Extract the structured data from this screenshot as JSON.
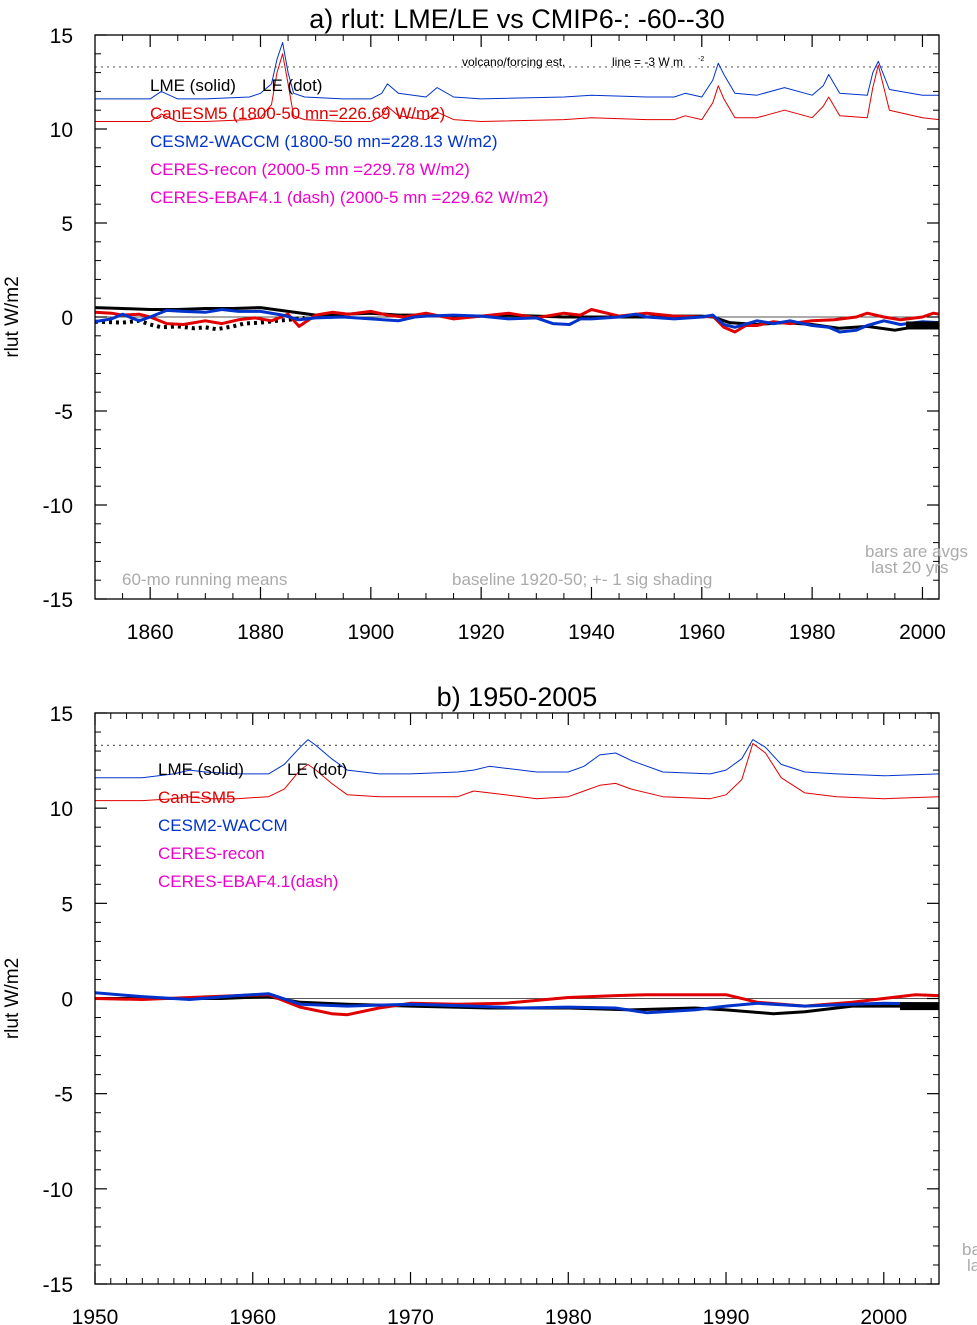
{
  "chart_data": [
    {
      "type": "line",
      "title": "a) rlut: LME/LE vs CMIP6-: -60--30",
      "ylabel": "rlut W/m2",
      "xlim": [
        1850,
        2003
      ],
      "ylim": [
        -15,
        15
      ],
      "xticks": [
        1860,
        1880,
        1900,
        1920,
        1940,
        1960,
        1980,
        2000
      ],
      "xtick_labels": [
        "1860",
        "1880",
        "1900",
        "1920",
        "1940",
        "1960",
        "1980",
        "2000"
      ],
      "yticks": [
        15,
        10,
        5,
        0,
        -5,
        -10,
        -15
      ],
      "ytick_labels": [
        "15",
        "10",
        "5",
        "0",
        "-5",
        "-10",
        "-15"
      ],
      "legend": [
        "LME (solid)",
        "LE (dot)",
        "CanESM5 (1800-50 mn=226.69 W/m2)",
        "CESM2-WACCM (1800-50 mn=228.13 W/m2)",
        "CERES-recon (2000-5 mn =229.78 W/m2)",
        "CERES-EBAF4.1 (dash) (2000-5 mn =229.62 W/m2)"
      ],
      "annotations": [
        "volcano/forcing est.",
        "line = -3 W m",
        "-2",
        "60-mo running means",
        "baseline 1920-50; +- 1 sig shading",
        "bars are avgs",
        "last 20 yrs"
      ],
      "reference_lines": {
        "zero": 0,
        "dotted": 13.3
      },
      "series": [
        {
          "name": "LME (solid)",
          "color": "#000000",
          "x": [
            1850,
            1855,
            1860,
            1865,
            1870,
            1875,
            1880,
            1885,
            1890,
            1895,
            1900,
            1905,
            1910,
            1915,
            1920,
            1925,
            1930,
            1935,
            1940,
            1945,
            1950,
            1955,
            1960,
            1962,
            1965,
            1970,
            1975,
            1980,
            1985,
            1990,
            1995,
            2000,
            2003
          ],
          "y": [
            0.5,
            0.45,
            0.4,
            0.4,
            0.45,
            0.45,
            0.5,
            0.3,
            0.1,
            0.15,
            0.2,
            0.1,
            0.1,
            0.0,
            0.05,
            0.1,
            0.05,
            0.0,
            0.0,
            0.0,
            0.0,
            0.05,
            0.05,
            0.0,
            -0.3,
            -0.4,
            -0.3,
            -0.4,
            -0.6,
            -0.5,
            -0.7,
            -0.45,
            -0.45
          ]
        },
        {
          "name": "LE (dot)",
          "color": "#000000",
          "x": [
            1850,
            1855,
            1858,
            1860,
            1862,
            1865,
            1868,
            1870,
            1872,
            1875,
            1877,
            1880,
            1883,
            1885,
            1888
          ],
          "y": [
            -0.25,
            -0.3,
            -0.2,
            -0.4,
            -0.55,
            -0.5,
            -0.6,
            -0.55,
            -0.65,
            -0.5,
            -0.35,
            -0.3,
            -0.2,
            -0.15,
            -0.05
          ]
        },
        {
          "name": "CanESM5",
          "color": "#e00000",
          "x": [
            1850,
            1853,
            1855,
            1858,
            1860,
            1863,
            1866,
            1870,
            1873,
            1876,
            1879,
            1882,
            1885,
            1887,
            1890,
            1893,
            1896,
            1900,
            1903,
            1906,
            1910,
            1915,
            1920,
            1925,
            1930,
            1935,
            1938,
            1940,
            1945,
            1950,
            1955,
            1960,
            1962,
            1964,
            1966,
            1968,
            1970,
            1973,
            1976,
            1980,
            1984,
            1988,
            1990,
            1993,
            1996,
            2000,
            2002,
            2003
          ],
          "y": [
            0.25,
            0.2,
            0.1,
            0.15,
            0.0,
            -0.35,
            -0.4,
            -0.2,
            -0.35,
            -0.15,
            -0.05,
            -0.2,
            0.15,
            -0.5,
            0.1,
            0.25,
            0.15,
            0.3,
            0.1,
            0.0,
            0.2,
            -0.1,
            0.05,
            0.2,
            -0.05,
            0.2,
            0.1,
            0.4,
            0.05,
            0.2,
            0.05,
            0.0,
            0.05,
            -0.55,
            -0.8,
            -0.45,
            -0.45,
            -0.25,
            -0.35,
            -0.2,
            -0.15,
            0.0,
            0.2,
            0.0,
            -0.15,
            0.0,
            0.2,
            0.15
          ]
        },
        {
          "name": "CESM2-WACCM",
          "color": "#0033cc",
          "x": [
            1850,
            1853,
            1855,
            1858,
            1860,
            1863,
            1866,
            1870,
            1873,
            1876,
            1880,
            1884,
            1887,
            1890,
            1895,
            1900,
            1905,
            1908,
            1910,
            1915,
            1920,
            1925,
            1930,
            1933,
            1936,
            1938,
            1940,
            1945,
            1948,
            1950,
            1955,
            1960,
            1962,
            1964,
            1966,
            1970,
            1973,
            1976,
            1980,
            1983,
            1985,
            1988,
            1990,
            1993,
            1996,
            2000,
            2003
          ],
          "y": [
            -0.25,
            -0.1,
            0.15,
            -0.2,
            0.0,
            0.35,
            0.3,
            0.25,
            0.4,
            0.3,
            0.3,
            0.1,
            -0.15,
            -0.05,
            0.0,
            -0.1,
            -0.2,
            0.0,
            0.05,
            0.1,
            0.05,
            -0.1,
            -0.05,
            -0.35,
            -0.4,
            -0.1,
            -0.1,
            0.0,
            0.15,
            0.0,
            -0.1,
            0.0,
            0.1,
            -0.4,
            -0.55,
            -0.2,
            -0.35,
            -0.2,
            -0.45,
            -0.55,
            -0.8,
            -0.7,
            -0.45,
            -0.2,
            -0.4,
            -0.25,
            -0.3
          ]
        },
        {
          "name": "CESM2-WACCM volcanic forcing",
          "color": "#0033cc",
          "x": [
            1850,
            1860,
            1862,
            1865,
            1870,
            1878,
            1880,
            1882,
            1883,
            1884,
            1885,
            1886,
            1888,
            1895,
            1900,
            1902,
            1903,
            1905,
            1910,
            1912,
            1915,
            1920,
            1935,
            1940,
            1950,
            1955,
            1957,
            1960,
            1962,
            1963,
            1964,
            1966,
            1970,
            1975,
            1980,
            1982,
            1983,
            1985,
            1990,
            1991,
            1992,
            1994,
            2000,
            2003
          ],
          "y": [
            11.6,
            11.6,
            12.0,
            11.6,
            11.6,
            11.7,
            11.9,
            12.4,
            13.7,
            14.6,
            13.0,
            11.9,
            11.7,
            11.6,
            11.6,
            11.9,
            12.4,
            11.9,
            11.7,
            12.2,
            11.7,
            11.6,
            11.7,
            11.8,
            11.7,
            11.7,
            11.9,
            11.7,
            12.6,
            13.5,
            12.9,
            11.9,
            11.8,
            12.2,
            11.8,
            12.3,
            12.9,
            11.9,
            11.8,
            13.0,
            13.6,
            12.1,
            11.8,
            11.8
          ]
        },
        {
          "name": "CanESM5 volcanic forcing",
          "color": "#e00000",
          "x": [
            1850,
            1860,
            1862,
            1865,
            1870,
            1878,
            1880,
            1882,
            1883,
            1884,
            1885,
            1886,
            1888,
            1895,
            1900,
            1902,
            1903,
            1905,
            1910,
            1912,
            1915,
            1920,
            1935,
            1940,
            1950,
            1955,
            1957,
            1960,
            1962,
            1963,
            1964,
            1966,
            1970,
            1975,
            1980,
            1982,
            1983,
            1985,
            1990,
            1991,
            1992,
            1994,
            2000,
            2003
          ],
          "y": [
            10.4,
            10.4,
            10.8,
            10.4,
            10.4,
            10.5,
            10.6,
            11.3,
            13.0,
            14.0,
            12.4,
            10.7,
            10.5,
            10.4,
            10.4,
            10.7,
            11.2,
            10.7,
            10.5,
            10.9,
            10.5,
            10.4,
            10.5,
            10.6,
            10.5,
            10.5,
            10.7,
            10.5,
            11.4,
            12.3,
            11.6,
            10.6,
            10.6,
            11.0,
            10.6,
            11.2,
            11.7,
            10.7,
            10.6,
            12.2,
            13.4,
            11.0,
            10.6,
            10.5
          ]
        }
      ]
    },
    {
      "type": "line",
      "title": "b) 1950-2005",
      "ylabel": "rlut W/m2",
      "xlim": [
        1950,
        2003.5
      ],
      "ylim": [
        -15,
        15
      ],
      "xticks": [
        1950,
        1960,
        1970,
        1980,
        1990,
        2000
      ],
      "xtick_labels": [
        "1950",
        "1960",
        "1970",
        "1980",
        "1990",
        "2000"
      ],
      "yticks": [
        15,
        10,
        5,
        0,
        -5,
        -10,
        -15
      ],
      "ytick_labels": [
        "15",
        "10",
        "5",
        "0",
        "-5",
        "-10",
        "-15"
      ],
      "legend": [
        "LME (solid)",
        "LE (dot)",
        "CanESM5",
        "CESM2-WACCM",
        "CERES-recon",
        "CERES-EBAF4.1(dash)"
      ],
      "annotations": [
        "ba",
        "la"
      ],
      "reference_lines": {
        "zero": 0,
        "dotted": 13.3
      },
      "series": [
        {
          "name": "LME (solid)",
          "color": "#000000",
          "x": [
            1950,
            1954,
            1958,
            1961,
            1963,
            1966,
            1970,
            1975,
            1980,
            1984,
            1988,
            1990,
            1993,
            1995,
            1998,
            2000,
            2003
          ],
          "y": [
            0.0,
            0.0,
            0.0,
            0.1,
            -0.2,
            -0.3,
            -0.4,
            -0.5,
            -0.5,
            -0.6,
            -0.5,
            -0.6,
            -0.8,
            -0.7,
            -0.4,
            -0.4,
            -0.4
          ]
        },
        {
          "name": "CanESM5",
          "color": "#e00000",
          "x": [
            1950,
            1953,
            1956,
            1959,
            1961,
            1963,
            1965,
            1966,
            1968,
            1970,
            1973,
            1976,
            1980,
            1983,
            1985,
            1988,
            1990,
            1992,
            1995,
            1998,
            2000,
            2002,
            2003.5
          ],
          "y": [
            0.0,
            -0.05,
            0.05,
            0.15,
            0.2,
            -0.45,
            -0.8,
            -0.85,
            -0.5,
            -0.25,
            -0.3,
            -0.25,
            0.05,
            0.15,
            0.2,
            0.2,
            0.2,
            -0.2,
            -0.4,
            -0.2,
            0.0,
            0.2,
            0.15
          ]
        },
        {
          "name": "CESM2-WACCM",
          "color": "#0033cc",
          "x": [
            1950,
            1953,
            1956,
            1959,
            1961,
            1963,
            1966,
            1970,
            1974,
            1977,
            1980,
            1983,
            1985,
            1988,
            1990,
            1992,
            1995,
            1998,
            2000,
            2003.5
          ],
          "y": [
            0.3,
            0.1,
            -0.05,
            0.15,
            0.25,
            -0.3,
            -0.4,
            -0.3,
            -0.4,
            -0.5,
            -0.45,
            -0.5,
            -0.75,
            -0.6,
            -0.4,
            -0.25,
            -0.4,
            -0.3,
            -0.25,
            -0.3
          ]
        },
        {
          "name": "CESM2-WACCM volcanic forcing",
          "color": "#0033cc",
          "x": [
            1950,
            1953,
            1955,
            1956,
            1957,
            1959,
            1961,
            1962,
            1963,
            1963.5,
            1964,
            1965,
            1966,
            1968,
            1970,
            1973,
            1974,
            1975,
            1976,
            1978,
            1980,
            1981,
            1982,
            1983,
            1984,
            1986,
            1989,
            1990,
            1991,
            1991.7,
            1992.5,
            1993.5,
            1995,
            1997,
            2000,
            2003.5
          ],
          "y": [
            11.6,
            11.6,
            11.8,
            12.0,
            11.9,
            11.8,
            11.8,
            12.3,
            13.2,
            13.6,
            13.3,
            12.6,
            12.0,
            11.8,
            11.8,
            11.9,
            12.0,
            12.2,
            12.1,
            11.9,
            11.9,
            12.2,
            12.8,
            12.9,
            12.5,
            11.9,
            11.8,
            12.0,
            12.6,
            13.6,
            13.2,
            12.3,
            11.9,
            11.8,
            11.7,
            11.8
          ]
        },
        {
          "name": "CanESM5 volcanic forcing",
          "color": "#e00000",
          "x": [
            1950,
            1953,
            1955,
            1956,
            1957,
            1959,
            1961,
            1962,
            1963,
            1963.5,
            1964,
            1965,
            1966,
            1968,
            1970,
            1973,
            1974,
            1975,
            1976,
            1978,
            1980,
            1981,
            1982,
            1983,
            1984,
            1986,
            1989,
            1990,
            1991,
            1991.7,
            1992.5,
            1993.5,
            1995,
            1997,
            2000,
            2003.5
          ],
          "y": [
            10.4,
            10.4,
            10.5,
            10.6,
            10.5,
            10.5,
            10.6,
            11.0,
            12.0,
            12.3,
            12.0,
            11.3,
            10.7,
            10.6,
            10.6,
            10.6,
            10.9,
            10.8,
            10.7,
            10.5,
            10.6,
            10.9,
            11.2,
            11.3,
            11.0,
            10.6,
            10.5,
            10.7,
            11.5,
            13.4,
            12.9,
            11.6,
            10.8,
            10.6,
            10.5,
            10.6
          ]
        }
      ]
    }
  ]
}
